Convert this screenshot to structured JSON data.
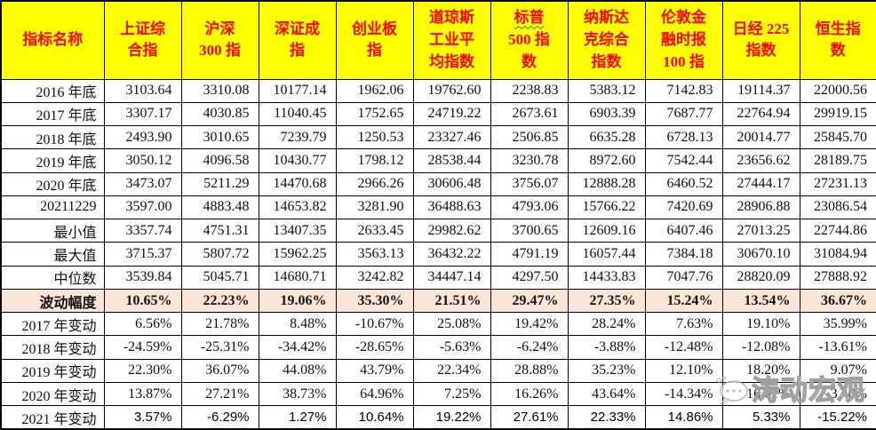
{
  "table": {
    "header": {
      "cols": [
        {
          "lines": [
            "指标名称"
          ]
        },
        {
          "lines": [
            "上证综",
            "合指"
          ]
        },
        {
          "lines": [
            "沪深",
            "300 指"
          ]
        },
        {
          "lines": [
            "深证成",
            "指"
          ]
        },
        {
          "lines": [
            "创业板",
            "指"
          ]
        },
        {
          "lines": [
            "道琼斯",
            "工业平",
            "均指数"
          ]
        },
        {
          "lines": [
            "标普",
            "500 指",
            "数"
          ],
          "wavy_line": 0
        },
        {
          "lines": [
            "纳斯达",
            "克综合",
            "指数"
          ]
        },
        {
          "lines": [
            "伦敦金",
            "融时报",
            "100 指"
          ]
        },
        {
          "lines": [
            "日经 225",
            "指数"
          ]
        },
        {
          "lines": [
            "恒生指",
            "数"
          ]
        }
      ]
    },
    "rows": [
      {
        "label": "2016 年底",
        "style": "normal",
        "values": [
          "3103.64",
          "3310.08",
          "10177.14",
          "1962.06",
          "19762.60",
          "2238.83",
          "5383.12",
          "7142.83",
          "19114.37",
          "22000.56"
        ]
      },
      {
        "label": "2017 年底",
        "style": "normal",
        "values": [
          "3307.17",
          "4030.85",
          "11040.45",
          "1752.65",
          "24719.22",
          "2673.61",
          "6903.39",
          "7687.77",
          "22764.94",
          "29919.15"
        ]
      },
      {
        "label": "2018 年底",
        "style": "normal",
        "values": [
          "2493.90",
          "3010.65",
          "7239.79",
          "1250.53",
          "23327.46",
          "2506.85",
          "6635.28",
          "6728.13",
          "20014.77",
          "25845.70"
        ]
      },
      {
        "label": "2019 年底",
        "style": "normal",
        "values": [
          "3050.12",
          "4096.58",
          "10430.77",
          "1798.12",
          "28538.44",
          "3230.78",
          "8972.60",
          "7542.44",
          "23656.62",
          "28189.75"
        ]
      },
      {
        "label": "2020 年底",
        "style": "normal",
        "values": [
          "3473.07",
          "5211.29",
          "14470.68",
          "2966.26",
          "30606.48",
          "3756.07",
          "12888.28",
          "6460.52",
          "27444.17",
          "27231.13"
        ]
      },
      {
        "label": "20211229",
        "style": "normal",
        "values": [
          "3597.00",
          "4883.48",
          "14653.82",
          "3281.90",
          "36488.63",
          "4793.06",
          "15766.22",
          "7420.69",
          "28906.88",
          "23086.54"
        ]
      },
      {
        "label": "最小值",
        "style": "normal",
        "values": [
          "3357.74",
          "4751.31",
          "13407.35",
          "2633.45",
          "29982.62",
          "3700.65",
          "12609.16",
          "6407.46",
          "27013.25",
          "22744.86"
        ]
      },
      {
        "label": "最大值",
        "style": "normal",
        "values": [
          "3715.37",
          "5807.72",
          "15962.25",
          "3563.13",
          "36432.22",
          "4791.19",
          "16057.44",
          "7384.18",
          "30670.10",
          "31084.94"
        ]
      },
      {
        "label": "中位数",
        "style": "normal",
        "values": [
          "3539.84",
          "5045.71",
          "14680.71",
          "3242.82",
          "34447.14",
          "4297.50",
          "14433.83",
          "7047.76",
          "28820.09",
          "27888.92"
        ]
      },
      {
        "label": "波动幅度",
        "style": "highlight",
        "values": [
          "10.65%",
          "22.23%",
          "19.06%",
          "35.30%",
          "21.51%",
          "29.47%",
          "27.35%",
          "15.24%",
          "13.54%",
          "36.67%"
        ]
      },
      {
        "label": "2017 年变动",
        "style": "normal",
        "values": [
          "6.56%",
          "21.78%",
          "8.48%",
          "-10.67%",
          "25.08%",
          "19.42%",
          "28.24%",
          "7.63%",
          "19.10%",
          "35.99%"
        ]
      },
      {
        "label": "2018 年变动",
        "style": "normal",
        "values": [
          "-24.59%",
          "-25.31%",
          "-34.42%",
          "-28.65%",
          "-5.63%",
          "-6.24%",
          "-3.88%",
          "-12.48%",
          "-12.08%",
          "-13.61%"
        ]
      },
      {
        "label": "2019 年变动",
        "style": "normal",
        "values": [
          "22.30%",
          "36.07%",
          "44.08%",
          "43.79%",
          "22.34%",
          "28.88%",
          "35.23%",
          "12.10%",
          "18.20%",
          "9.07%"
        ]
      },
      {
        "label": "2020 年变动",
        "style": "normal",
        "values": [
          "13.87%",
          "27.21%",
          "38.73%",
          "64.96%",
          "7.25%",
          "16.26%",
          "43.64%",
          "-14.34%",
          "16.01%",
          "-3.40%"
        ]
      },
      {
        "label": "2021 年变动",
        "style": "sans",
        "values": [
          "3.57%",
          "-6.29%",
          "1.27%",
          "10.64%",
          "19.22%",
          "27.61%",
          "22.33%",
          "14.86%",
          "5.33%",
          "-15.22%"
        ]
      }
    ]
  },
  "watermark": {
    "text": "涛动宏观",
    "icon": "wechat-bubble-icon"
  },
  "colors": {
    "header_bg": "#FFFF00",
    "header_text": "#FF0000",
    "highlight_row_bg": "#FBE5D6",
    "border": "#000000",
    "wavy_underline": "#2E74B5"
  }
}
